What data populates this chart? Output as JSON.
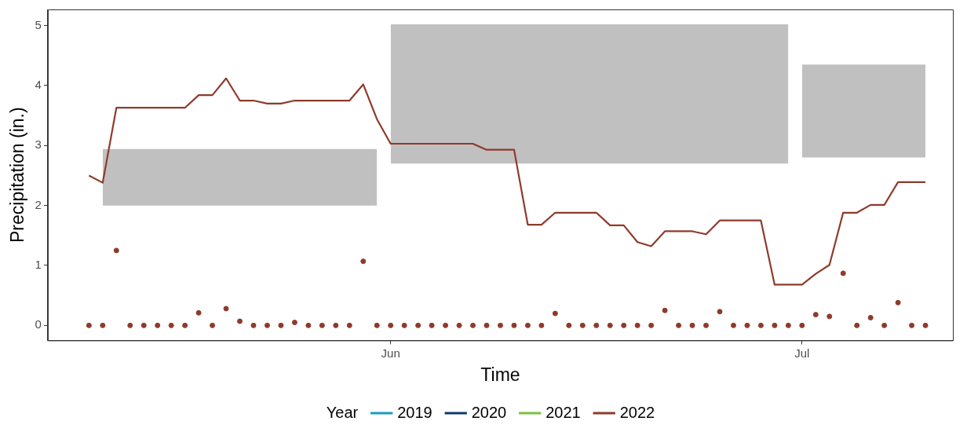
{
  "chart_data": {
    "type": "line",
    "xlabel": "Time",
    "ylabel": "Precipitation (in.)",
    "legend_title": "Year",
    "legend": "bottom",
    "grid": false,
    "xlim": [
      "2022-05-07",
      "2022-07-12"
    ],
    "xticks": [
      {
        "value": "2022-06-01",
        "label": "Jun"
      },
      {
        "value": "2022-07-01",
        "label": "Jul"
      }
    ],
    "ylim": [
      -0.25,
      5.27
    ],
    "yticks": [
      0,
      1,
      2,
      3,
      4,
      5
    ],
    "x": [
      "2022-05-10",
      "2022-05-11",
      "2022-05-12",
      "2022-05-13",
      "2022-05-14",
      "2022-05-15",
      "2022-05-16",
      "2022-05-17",
      "2022-05-18",
      "2022-05-19",
      "2022-05-20",
      "2022-05-21",
      "2022-05-22",
      "2022-05-23",
      "2022-05-24",
      "2022-05-25",
      "2022-05-26",
      "2022-05-27",
      "2022-05-28",
      "2022-05-29",
      "2022-05-30",
      "2022-05-31",
      "2022-06-01",
      "2022-06-02",
      "2022-06-03",
      "2022-06-04",
      "2022-06-05",
      "2022-06-06",
      "2022-06-07",
      "2022-06-08",
      "2022-06-09",
      "2022-06-10",
      "2022-06-11",
      "2022-06-12",
      "2022-06-13",
      "2022-06-14",
      "2022-06-15",
      "2022-06-16",
      "2022-06-17",
      "2022-06-18",
      "2022-06-19",
      "2022-06-20",
      "2022-06-21",
      "2022-06-22",
      "2022-06-23",
      "2022-06-24",
      "2022-06-25",
      "2022-06-26",
      "2022-06-27",
      "2022-06-28",
      "2022-06-29",
      "2022-06-30",
      "2022-07-01",
      "2022-07-02",
      "2022-07-03",
      "2022-07-04",
      "2022-07-05",
      "2022-07-06",
      "2022-07-07",
      "2022-07-08",
      "2022-07-09",
      "2022-07-10"
    ],
    "series": [
      {
        "type": "area",
        "color": "#c0c0c0",
        "x": [
          "2022-05-11",
          "2022-05-31"
        ],
        "values": [
          null,
          null
        ],
        "lower": [
          2.0,
          2.0
        ],
        "upper": [
          2.94,
          2.94
        ]
      },
      {
        "type": "area",
        "color": "#c0c0c0",
        "x": [
          "2022-06-01",
          "2022-06-30"
        ],
        "values": [
          null,
          null
        ],
        "lower": [
          2.7,
          2.7
        ],
        "upper": [
          5.02,
          5.02
        ]
      },
      {
        "type": "area",
        "color": "#c0c0c0",
        "x": [
          "2022-07-01",
          "2022-07-10"
        ],
        "values": [
          null,
          null
        ],
        "lower": [
          2.8,
          2.8
        ],
        "upper": [
          4.35,
          4.35
        ]
      },
      {
        "name": "2019",
        "color": "#1b9bbf",
        "values": [
          null,
          null,
          null,
          null,
          null,
          null,
          null,
          null,
          null,
          null,
          null,
          null,
          null,
          null,
          null,
          null,
          null,
          null,
          null,
          null,
          null,
          null,
          null,
          null,
          null,
          null,
          null,
          null,
          null,
          null,
          null,
          null,
          null,
          null,
          null,
          null,
          null,
          null,
          null,
          null,
          null,
          null,
          null,
          null,
          null,
          null,
          null,
          null,
          null,
          null,
          null,
          null,
          null,
          null,
          null,
          null,
          null,
          null,
          null,
          null,
          null,
          null
        ]
      },
      {
        "name": "2020",
        "color": "#0c3a6b",
        "values": [
          null,
          null,
          null,
          null,
          null,
          null,
          null,
          null,
          null,
          null,
          null,
          null,
          null,
          null,
          null,
          null,
          null,
          null,
          null,
          null,
          null,
          null,
          null,
          null,
          null,
          null,
          null,
          null,
          null,
          null,
          null,
          null,
          null,
          null,
          null,
          null,
          null,
          null,
          null,
          null,
          null,
          null,
          null,
          null,
          null,
          null,
          null,
          null,
          null,
          null,
          null,
          null,
          null,
          null,
          null,
          null,
          null,
          null,
          null,
          null,
          null,
          null
        ]
      },
      {
        "name": "2021",
        "color": "#7ac143",
        "values": [
          null,
          null,
          null,
          null,
          null,
          null,
          null,
          null,
          null,
          null,
          null,
          null,
          null,
          null,
          null,
          null,
          null,
          null,
          null,
          null,
          null,
          null,
          null,
          null,
          null,
          null,
          null,
          null,
          null,
          null,
          null,
          null,
          null,
          null,
          null,
          null,
          null,
          null,
          null,
          null,
          null,
          null,
          null,
          null,
          null,
          null,
          null,
          null,
          null,
          null,
          null,
          null,
          null,
          null,
          null,
          null,
          null,
          null,
          null,
          null,
          null,
          null
        ]
      },
      {
        "name": "2022",
        "color": "#8e3b2b",
        "values": [
          2.5,
          2.38,
          3.63,
          3.63,
          3.63,
          3.63,
          3.63,
          3.63,
          3.84,
          3.84,
          4.12,
          3.75,
          3.75,
          3.7,
          3.7,
          3.75,
          3.75,
          3.75,
          3.75,
          3.75,
          4.02,
          3.44,
          3.03,
          3.03,
          3.03,
          3.03,
          3.03,
          3.03,
          3.03,
          2.93,
          2.93,
          2.93,
          1.68,
          1.68,
          1.88,
          1.88,
          1.88,
          1.88,
          1.67,
          1.67,
          1.39,
          1.32,
          1.57,
          1.57,
          1.57,
          1.52,
          1.75,
          1.75,
          1.75,
          1.75,
          0.68,
          0.68,
          0.68,
          0.86,
          1.01,
          1.88,
          1.88,
          2.01,
          2.01,
          2.39,
          2.39,
          2.39
        ]
      },
      {
        "type": "scatter",
        "marker": "circle",
        "color": "#8e3b2b",
        "values": [
          0,
          0,
          1.25,
          0,
          0,
          0,
          0,
          0,
          0.21,
          0,
          0.28,
          0.07,
          0,
          0,
          0,
          0.05,
          0,
          0,
          0,
          0,
          1.07,
          0,
          0,
          0,
          0,
          0,
          0,
          0,
          0,
          0,
          0,
          0,
          0,
          0,
          0.2,
          0,
          0,
          0,
          0,
          0,
          0,
          0,
          0.25,
          0,
          0,
          0,
          0.23,
          0,
          0,
          0,
          0,
          0,
          0,
          0.18,
          0.15,
          0.87,
          0,
          0.13,
          0,
          0.38,
          0,
          0
        ]
      }
    ]
  }
}
